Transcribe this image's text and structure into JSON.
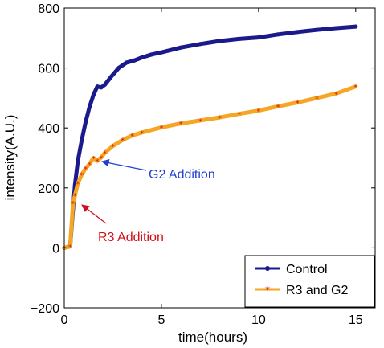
{
  "chart_data": {
    "type": "line",
    "xlabel": "time(hours)",
    "ylabel": "intensity(A.U.)",
    "xlim": [
      0,
      16
    ],
    "ylim": [
      -200,
      800
    ],
    "xticks": [
      0,
      5,
      10,
      15
    ],
    "yticks": [
      -200,
      0,
      200,
      400,
      600,
      800
    ],
    "xtick_labels": [
      "0",
      "5",
      "10",
      "15"
    ],
    "ytick_labels": [
      "−200",
      "0",
      "200",
      "400",
      "600",
      "800"
    ],
    "grid": false,
    "legend_position": "bottom-right",
    "series": [
      {
        "name": "Control",
        "color": "#1a1a8c",
        "marker": "circle",
        "x": [
          0.0,
          0.3,
          0.45,
          0.55,
          0.7,
          0.9,
          1.1,
          1.3,
          1.5,
          1.7,
          1.9,
          2.1,
          2.4,
          2.8,
          3.2,
          3.6,
          4.0,
          4.5,
          5.0,
          6.0,
          7.0,
          8.0,
          9.0,
          10.0,
          11.0,
          12.0,
          13.0,
          14.0,
          15.0
        ],
        "y": [
          0,
          5,
          130,
          210,
          290,
          360,
          420,
          470,
          510,
          538,
          535,
          545,
          570,
          600,
          618,
          625,
          635,
          645,
          652,
          668,
          680,
          690,
          697,
          702,
          712,
          720,
          727,
          733,
          738
        ]
      },
      {
        "name": "R3 and G2",
        "color": "#f5a623",
        "marker": "asterisk",
        "x": [
          0.0,
          0.3,
          0.45,
          0.55,
          0.7,
          0.9,
          1.1,
          1.3,
          1.5,
          1.7,
          1.9,
          2.1,
          2.5,
          3.0,
          3.5,
          4.0,
          5.0,
          6.0,
          7.0,
          8.0,
          9.0,
          10.0,
          11.0,
          12.0,
          13.0,
          14.0,
          15.0
        ],
        "y": [
          0,
          5,
          150,
          175,
          215,
          245,
          265,
          280,
          300,
          290,
          302,
          318,
          340,
          360,
          375,
          385,
          402,
          415,
          425,
          435,
          447,
          458,
          472,
          485,
          500,
          515,
          538
        ]
      }
    ],
    "annotations": [
      {
        "text": "G2 Addition",
        "color": "#1f3fd0",
        "target": [
          1.35,
          290
        ]
      },
      {
        "text": "R3 Addition",
        "color": "#d0101a",
        "target": [
          0.55,
          165
        ]
      }
    ]
  }
}
